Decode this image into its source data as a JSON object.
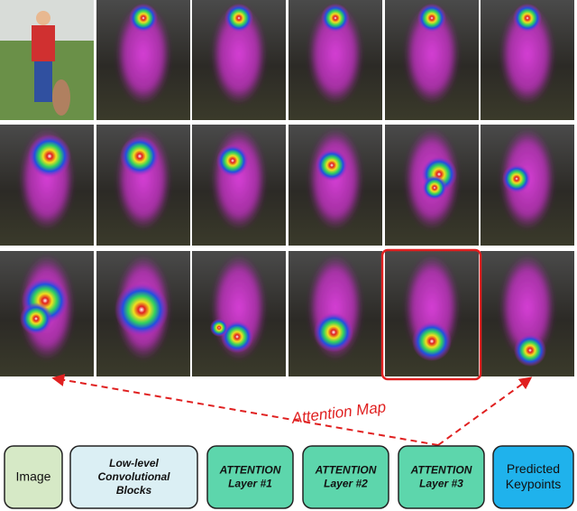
{
  "annotation": "Attention Map",
  "boxes": [
    {
      "lines": [
        "Image"
      ]
    },
    {
      "lines": [
        "Low-level",
        "Convolutional",
        "Blocks"
      ]
    },
    {
      "lines": [
        "ATTENTION",
        "Layer #1"
      ]
    },
    {
      "lines": [
        "ATTENTION",
        "Layer #2"
      ]
    },
    {
      "lines": [
        "ATTENTION",
        "Layer #3"
      ]
    },
    {
      "lines": [
        "Predicted",
        "Keypoints"
      ]
    }
  ]
}
